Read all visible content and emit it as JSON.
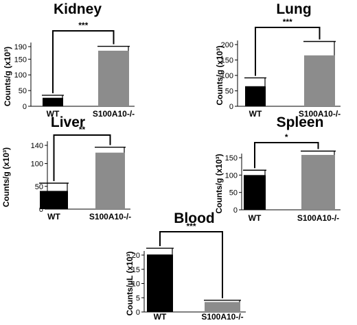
{
  "colors": {
    "wt": "#000000",
    "ko": "#8c8c8c"
  },
  "chart_data": [
    {
      "type": "bar",
      "title": "Kidney",
      "ylabel": "Counts/g (x10³)",
      "categories": [
        "WT",
        "S100A10-/-"
      ],
      "values": [
        27,
        177
      ],
      "errors": [
        8,
        14
      ],
      "ylim": [
        0,
        190
      ],
      "yticks": [
        0,
        50,
        100,
        150,
        190
      ],
      "significance": "***"
    },
    {
      "type": "bar",
      "title": "Lung",
      "ylabel": "Counts/g (x10³)",
      "categories": [
        "WT",
        "S100A10-/-"
      ],
      "values": [
        65,
        165
      ],
      "errors": [
        27,
        45
      ],
      "ylim": [
        0,
        200
      ],
      "yticks": [
        0,
        50,
        100,
        150,
        200
      ],
      "significance": "***"
    },
    {
      "type": "bar",
      "title": "Liver",
      "ylabel": "Counts/g (x10³)",
      "categories": [
        "WT",
        "S100A10-/-"
      ],
      "values": [
        40,
        124
      ],
      "errors": [
        17,
        12
      ],
      "ylim": [
        0,
        140
      ],
      "yticks": [
        0,
        50,
        100,
        140
      ],
      "significance": "**"
    },
    {
      "type": "bar",
      "title": "Spleen",
      "ylabel": "Counts/g (x10³)",
      "categories": [
        "WT",
        "S100A10-/-"
      ],
      "values": [
        100,
        158
      ],
      "errors": [
        14,
        11
      ],
      "ylim": [
        0,
        150
      ],
      "yticks": [
        0,
        50,
        100,
        150
      ],
      "significance": "*"
    },
    {
      "type": "bar",
      "title": "Blood",
      "ylabel": "Counts/µL (x10³)",
      "categories": [
        "WT",
        "S100A10-/-"
      ],
      "values": [
        20.2,
        3.5
      ],
      "errors": [
        2.2,
        0.6
      ],
      "ylim": [
        0,
        20
      ],
      "yticks": [
        0,
        5,
        10,
        15,
        20
      ],
      "significance": "***"
    }
  ]
}
